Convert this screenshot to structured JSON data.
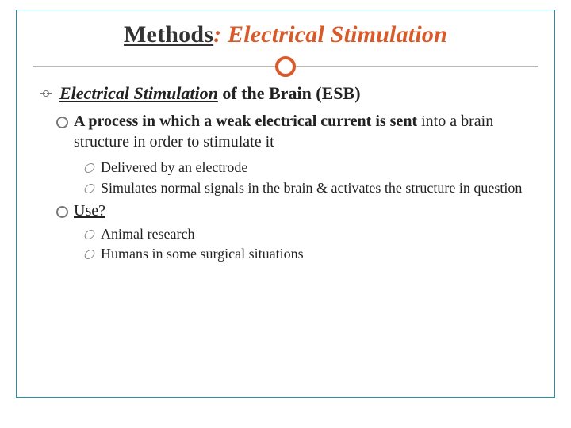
{
  "colors": {
    "border": "#2a8fa8",
    "accent": "#d85a2a",
    "text": "#222222",
    "bullet": "#777777",
    "hr": "#b9b9b9",
    "background": "#ffffff"
  },
  "typography": {
    "family": "Georgia",
    "title_size_pt": 30,
    "lvl1_size_pt": 22,
    "lvl2_size_pt": 20,
    "lvl3_size_pt": 18
  },
  "title": {
    "part_underlined": "Methods",
    "separator": ": ",
    "part_italic": "Electrical Stimulation"
  },
  "heading": {
    "underlined_italic": "Electrical Stimulation",
    "rest": " of the Brain (ESB)"
  },
  "point_a": {
    "bold_prefix": "A process in which a weak electrical current is sent ",
    "rest": "into a brain structure in order to stimulate it"
  },
  "sub_a": [
    "Delivered by an electrode",
    "Simulates normal signals in the brain & activates the structure in question"
  ],
  "use_label": "Use?",
  "use_items": [
    "Animal research",
    "Humans in some surgical situations"
  ]
}
